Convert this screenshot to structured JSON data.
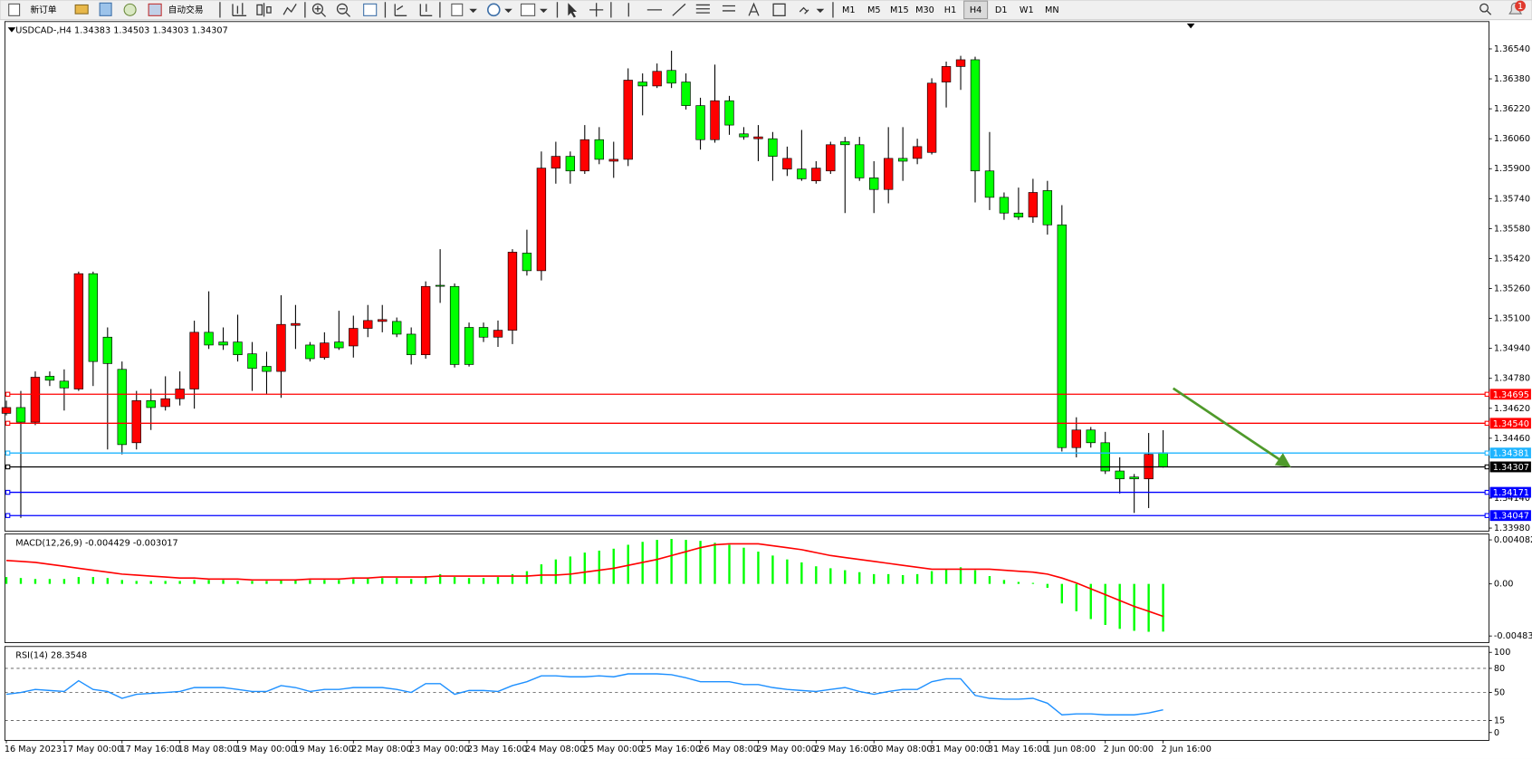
{
  "toolbar": {
    "new_order": "新订单",
    "auto_trading": "自动交易",
    "timeframes": [
      "M1",
      "M5",
      "M15",
      "M30",
      "H1",
      "H4",
      "D1",
      "W1",
      "MN"
    ],
    "active_timeframe": "H4",
    "notifications": "1"
  },
  "chart_data": [
    {
      "type": "candlestick",
      "title": "USDCAD-,H4 1.34383 1.34503 1.34303 1.34307",
      "categories": [
        "16 May 2023",
        null,
        null,
        null,
        "17 May 00:00",
        null,
        null,
        null,
        "17 May 16:00",
        null,
        null,
        null,
        "18 May 08:00",
        null,
        null,
        null,
        "19 May 00:00",
        null,
        null,
        null,
        "19 May 16:00",
        null,
        null,
        null,
        "22 May 08:00",
        null,
        null,
        null,
        "23 May 00:00",
        null,
        null,
        null,
        "23 May 16:00",
        null,
        null,
        null,
        "24 May 08:00",
        null,
        null,
        null,
        "25 May 00:00",
        null,
        null,
        null,
        "25 May 16:00",
        null,
        null,
        null,
        "26 May 08:00",
        null,
        null,
        null,
        "29 May 00:00",
        null,
        null,
        null,
        "29 May 16:00",
        null,
        null,
        null,
        "30 May 08:00",
        null,
        null,
        null,
        "31 May 00:00",
        null,
        null,
        null,
        "31 May 16:00",
        null,
        null,
        null,
        "1 Jun 08:00",
        null,
        null,
        null,
        "2 Jun 00:00",
        null,
        null,
        null,
        "2 Jun 16:00"
      ],
      "open": [
        1.34593,
        1.34624,
        1.34546,
        1.34791,
        1.34765,
        1.34723,
        1.35339,
        1.35,
        1.34828,
        1.34436,
        1.34661,
        1.34629,
        1.34671,
        1.34723,
        1.35026,
        1.34974,
        1.34974,
        1.34911,
        1.34844,
        1.34817,
        1.35063,
        1.34958,
        1.34891,
        1.34974,
        1.34953,
        1.35047,
        1.35084,
        1.35084,
        1.35016,
        1.34906,
        1.35277,
        1.35271,
        1.35052,
        1.35052,
        1.35,
        1.35037,
        1.35449,
        1.35355,
        1.35903,
        1.35966,
        1.35888,
        1.36055,
        1.3594,
        1.3595,
        1.36363,
        1.36342,
        1.36425,
        1.36363,
        1.36237,
        1.36055,
        1.36263,
        1.36086,
        1.3606,
        1.3606,
        1.35898,
        1.35898,
        1.35835,
        1.35888,
        1.36044,
        1.36028,
        1.35851,
        1.35789,
        1.35955,
        1.35955,
        1.35987,
        1.36363,
        1.36446,
        1.36482,
        1.35888,
        1.35747,
        1.35663,
        1.35642,
        1.35783,
        1.356,
        1.3441,
        1.34504,
        1.34436,
        1.34285,
        1.34253,
        1.34243,
        1.34383
      ],
      "high": [
        1.34661,
        1.34713,
        1.34817,
        1.34817,
        1.34828,
        1.3535,
        1.3535,
        1.35052,
        1.3487,
        1.34713,
        1.34723,
        1.34791,
        1.34817,
        1.35088,
        1.35245,
        1.35052,
        1.3512,
        1.34974,
        1.34922,
        1.35224,
        1.35172,
        1.34974,
        1.35026,
        1.35141,
        1.35115,
        1.35172,
        1.35172,
        1.35105,
        1.35052,
        1.35298,
        1.3547,
        1.35287,
        1.35078,
        1.35078,
        1.35089,
        1.3547,
        1.35574,
        1.35992,
        1.36044,
        1.35992,
        1.36133,
        1.36122,
        1.36044,
        1.36436,
        1.36409,
        1.36462,
        1.3653,
        1.36409,
        1.36279,
        1.36456,
        1.36289,
        1.36122,
        1.36133,
        1.36096,
        1.36018,
        1.36107,
        1.3594,
        1.36044,
        1.3607,
        1.3607,
        1.3594,
        1.36122,
        1.36122,
        1.3606,
        1.36383,
        1.36472,
        1.36503,
        1.36498,
        1.36096,
        1.35773,
        1.35799,
        1.35846,
        1.35835,
        1.35705,
        1.34572,
        1.3452,
        1.34494,
        1.34358,
        1.34269,
        1.34488,
        1.34503
      ],
      "low": [
        1.34582,
        1.34035,
        1.3453,
        1.34739,
        1.34608,
        1.34713,
        1.34739,
        1.344,
        1.34374,
        1.344,
        1.34504,
        1.34608,
        1.34635,
        1.34618,
        1.34937,
        1.34932,
        1.3487,
        1.34713,
        1.34697,
        1.34676,
        1.34937,
        1.3487,
        1.3488,
        1.34932,
        1.34891,
        1.35,
        1.35026,
        1.35,
        1.34854,
        1.34885,
        1.35183,
        1.34838,
        1.34843,
        1.34974,
        1.34948,
        1.34963,
        1.35329,
        1.35303,
        1.3582,
        1.3582,
        1.35872,
        1.35924,
        1.35851,
        1.35914,
        1.36185,
        1.36331,
        1.36331,
        1.36216,
        1.36002,
        1.36039,
        1.36081,
        1.36055,
        1.3594,
        1.35835,
        1.35861,
        1.35835,
        1.3582,
        1.35872,
        1.35663,
        1.35835,
        1.35663,
        1.35715,
        1.35835,
        1.35924,
        1.35976,
        1.36227,
        1.36321,
        1.3572,
        1.35679,
        1.35627,
        1.35627,
        1.35611,
        1.35548,
        1.34389,
        1.34358,
        1.3441,
        1.34269,
        1.34165,
        1.34061,
        1.34087,
        1.34303
      ],
      "close": [
        1.34624,
        1.34546,
        1.34786,
        1.3477,
        1.34729,
        1.35339,
        1.3487,
        1.34859,
        1.34426,
        1.34661,
        1.34624,
        1.34671,
        1.34723,
        1.35026,
        1.34958,
        1.34958,
        1.34906,
        1.34833,
        1.34817,
        1.35068,
        1.35073,
        1.34885,
        1.34969,
        1.34943,
        1.35047,
        1.35089,
        1.35094,
        1.35016,
        1.34906,
        1.35271,
        1.35277,
        1.34854,
        1.34854,
        1.35,
        1.35037,
        1.35454,
        1.35355,
        1.35903,
        1.35966,
        1.35888,
        1.36055,
        1.3595,
        1.3595,
        1.36373,
        1.36342,
        1.3642,
        1.36357,
        1.36237,
        1.36055,
        1.36263,
        1.36133,
        1.3607,
        1.3607,
        1.35966,
        1.35955,
        1.35846,
        1.35903,
        1.36028,
        1.36028,
        1.35851,
        1.35789,
        1.35955,
        1.3594,
        1.36018,
        1.36357,
        1.36446,
        1.36482,
        1.35888,
        1.35747,
        1.35663,
        1.35642,
        1.35773,
        1.356,
        1.3441,
        1.34504,
        1.34436,
        1.34285,
        1.34243,
        1.34243,
        1.34374,
        1.34307
      ],
      "up_color": "#ff0000",
      "down_color": "#00ff00",
      "wick_color": "#000000",
      "ylim": [
        1.33964,
        1.36686
      ],
      "yticks": [
        {
          "value": 1.3654,
          "label": "1.36540"
        },
        {
          "value": 1.3638,
          "label": "1.36380"
        },
        {
          "value": 1.3622,
          "label": "1.36220"
        },
        {
          "value": 1.3606,
          "label": "1.36060"
        },
        {
          "value": 1.359,
          "label": "1.35900"
        },
        {
          "value": 1.3574,
          "label": "1.35740"
        },
        {
          "value": 1.3558,
          "label": "1.35580"
        },
        {
          "value": 1.3542,
          "label": "1.35420"
        },
        {
          "value": 1.3526,
          "label": "1.35260"
        },
        {
          "value": 1.351,
          "label": "1.35100"
        },
        {
          "value": 1.3494,
          "label": "1.34940"
        },
        {
          "value": 1.3478,
          "label": "1.34780"
        },
        {
          "value": 1.3462,
          "label": "1.34620"
        },
        {
          "value": 1.3446,
          "label": "1.34460"
        },
        {
          "value": 1.3414,
          "label": "1.34140"
        },
        {
          "value": 1.3398,
          "label": "1.33980"
        }
      ],
      "hlines": [
        {
          "value": 1.34695,
          "color": "#ff0000"
        },
        {
          "value": 1.3454,
          "label": "1.34540",
          "color": "#ff0000"
        },
        {
          "value": 1.34381,
          "color": "#1eb4ff"
        },
        {
          "value": 1.34307,
          "color": "#000000"
        },
        {
          "value": 1.34171,
          "color": "#0000ff"
        },
        {
          "value": 1.34047,
          "color": "#0000ff"
        }
      ]
    },
    {
      "type": "macd",
      "title": "MACD(12,26,9) -0.004429 -0.003017",
      "histogram": {
        "color": "#00ff00",
        "values": [
          0.000635,
          0.000544,
          0.000454,
          0.000454,
          0.000454,
          0.000635,
          0.000635,
          0.000544,
          0.000363,
          0.000272,
          0.000272,
          0.000272,
          0.000272,
          0.000363,
          0.000363,
          0.000363,
          0.000272,
          0.000272,
          0.000272,
          0.000363,
          0.000363,
          0.000363,
          0.000363,
          0.000363,
          0.000454,
          0.000544,
          0.000544,
          0.000544,
          0.000454,
          0.000726,
          0.000907,
          0.000635,
          0.000544,
          0.000544,
          0.000635,
          0.000907,
          0.00118,
          0.001814,
          0.002268,
          0.00254,
          0.002903,
          0.003084,
          0.003265,
          0.003629,
          0.0039,
          0.004082,
          0.004172,
          0.004082,
          0.003991,
          0.003809,
          0.003629,
          0.003356,
          0.002993,
          0.00263,
          0.002268,
          0.001995,
          0.001633,
          0.001451,
          0.00127,
          0.001088,
          0.000907,
          0.000907,
          0.000816,
          0.000907,
          0.00118,
          0.001361,
          0.001542,
          0.00127,
          0.000726,
          0.000363,
          0.000181,
          9.1e-05,
          -0.000363,
          -0.001814,
          -0.00254,
          -0.003265,
          -0.003809,
          -0.004172,
          -0.004354,
          -0.004444,
          -0.004429
        ]
      },
      "signal": {
        "color": "#ff0000",
        "values": [
          0.002177,
          0.002086,
          0.001995,
          0.001814,
          0.001633,
          0.001451,
          0.00127,
          0.001088,
          0.000907,
          0.000816,
          0.000726,
          0.000635,
          0.000544,
          0.000544,
          0.000454,
          0.000454,
          0.000454,
          0.000363,
          0.000363,
          0.000363,
          0.000363,
          0.000454,
          0.000454,
          0.000454,
          0.000544,
          0.000544,
          0.000635,
          0.000635,
          0.000635,
          0.000635,
          0.000726,
          0.000726,
          0.000726,
          0.000726,
          0.000726,
          0.000726,
          0.000726,
          0.000816,
          0.000816,
          0.000907,
          0.001088,
          0.00127,
          0.001451,
          0.001723,
          0.001995,
          0.002268,
          0.00263,
          0.002993,
          0.003356,
          0.003628,
          0.003719,
          0.003719,
          0.003719,
          0.003537,
          0.003356,
          0.003175,
          0.002902,
          0.00263,
          0.002449,
          0.002268,
          0.002086,
          0.001905,
          0.001723,
          0.001542,
          0.001361,
          0.001361,
          0.001361,
          0.001361,
          0.001361,
          0.00127,
          0.001179,
          0.001088,
          0.000907,
          0.000544,
          9.1e-05,
          -0.000454,
          -0.000998,
          -0.001542,
          -0.002086,
          -0.00254,
          -0.003017
        ]
      },
      "ylim": [
        -0.005445,
        0.004626
      ],
      "yticks": [
        0.004082,
        {
          "value": 0,
          "label": "0.00"
        },
        -0.004834
      ]
    },
    {
      "type": "line",
      "title": "RSI(14) 28.3548",
      "color": "#1e90ff",
      "values": [
        47.6,
        50.0,
        53.7,
        52.4,
        51.2,
        64.6,
        53.7,
        51.2,
        42.7,
        47.6,
        48.8,
        50.0,
        51.2,
        56.1,
        56.1,
        56.1,
        53.7,
        51.2,
        51.2,
        58.5,
        56.1,
        51.2,
        53.7,
        53.7,
        56.1,
        56.1,
        56.1,
        53.7,
        50.0,
        61.0,
        61.0,
        47.6,
        52.4,
        52.4,
        51.2,
        58.5,
        63.4,
        70.7,
        70.7,
        69.5,
        69.5,
        70.7,
        69.5,
        73.2,
        73.2,
        73.2,
        72.0,
        68.3,
        63.4,
        63.4,
        63.4,
        59.8,
        59.8,
        56.1,
        53.7,
        52.4,
        51.2,
        53.7,
        56.1,
        51.2,
        47.6,
        51.2,
        53.7,
        53.7,
        63.4,
        67.1,
        67.1,
        46.3,
        42.7,
        41.5,
        41.5,
        42.7,
        36.6,
        22.0,
        23.2,
        23.2,
        22.0,
        22.0,
        22.0,
        24.4,
        28.3548
      ],
      "levels": [
        80,
        50,
        15
      ],
      "ylim": [
        -9.8,
        107.3
      ],
      "yticks": [
        100,
        80,
        50,
        15,
        0
      ]
    }
  ]
}
